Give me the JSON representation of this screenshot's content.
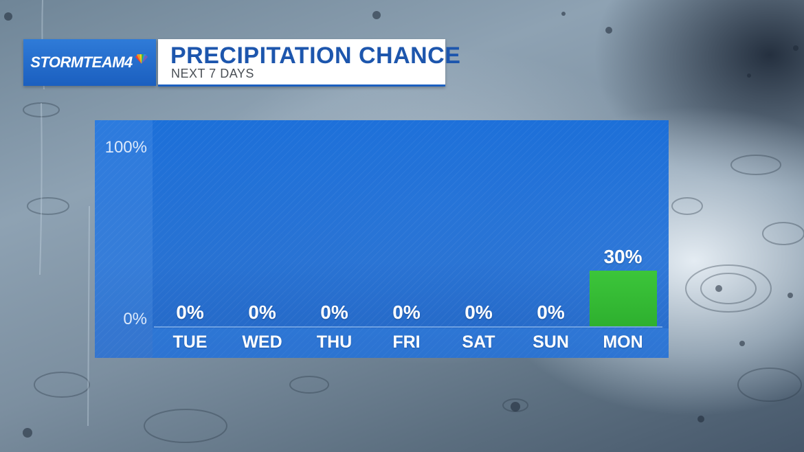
{
  "brand": {
    "name": "STORMTEAM4",
    "logo_icon": "nbc-peacock-icon"
  },
  "header": {
    "title": "PRECIPITATION CHANCE",
    "subtitle": "NEXT 7 DAYS"
  },
  "colors": {
    "accent_blue": "#1b5fbf",
    "bar_green": "#2eb02f",
    "panel_blue": "#1e6ed7"
  },
  "chart_data": {
    "type": "bar",
    "categories": [
      "TUE",
      "WED",
      "THU",
      "FRI",
      "SAT",
      "SUN",
      "MON"
    ],
    "values": [
      0,
      0,
      0,
      0,
      0,
      0,
      30
    ],
    "value_labels": [
      "0%",
      "0%",
      "0%",
      "0%",
      "0%",
      "0%",
      "30%"
    ],
    "yticks": [
      "100%",
      "0%"
    ],
    "ylim": [
      0,
      100
    ],
    "grid": false,
    "legend": "none"
  }
}
